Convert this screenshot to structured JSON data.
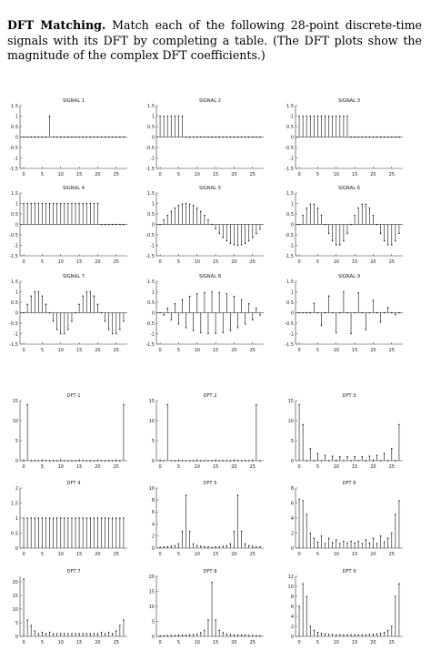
{
  "intro": {
    "bold": "DFT Matching.",
    "text": "Match each of the following 28-point discrete-time signals with its DFT by completing a table. (The DFT plots show the magnitude of the complex DFT coefficients.)"
  },
  "chart_data": [
    {
      "type": "stem",
      "title": "SIGNAL 1",
      "xlim": [
        -1,
        28
      ],
      "ylim": [
        -1.5,
        1.5
      ],
      "xticks": [
        0,
        5,
        10,
        15,
        20,
        25
      ],
      "yticks": [
        "1.5",
        "1",
        "0.5",
        "0",
        "-0.5",
        "-1",
        "-1.5"
      ],
      "x": [
        0,
        1,
        2,
        3,
        4,
        5,
        6,
        7,
        8,
        9,
        10,
        11,
        12,
        13,
        14,
        15,
        16,
        17,
        18,
        19,
        20,
        21,
        22,
        23,
        24,
        25,
        26,
        27
      ],
      "y": [
        0,
        0,
        0,
        0,
        0,
        0,
        0,
        1,
        0,
        0,
        0,
        0,
        0,
        0,
        0,
        0,
        0,
        0,
        0,
        0,
        0,
        0,
        0,
        0,
        0,
        0,
        0,
        0
      ]
    },
    {
      "type": "stem",
      "title": "SIGNAL 2",
      "xlim": [
        -1,
        28
      ],
      "ylim": [
        -1.5,
        1.5
      ],
      "xticks": [
        0,
        5,
        10,
        15,
        20,
        25
      ],
      "yticks": [
        "1.5",
        "1",
        "0.5",
        "0",
        "-0.5",
        "-1",
        "-1.5"
      ],
      "x": [
        0,
        1,
        2,
        3,
        4,
        5,
        6,
        7,
        8,
        9,
        10,
        11,
        12,
        13,
        14,
        15,
        16,
        17,
        18,
        19,
        20,
        21,
        22,
        23,
        24,
        25,
        26,
        27
      ],
      "y": [
        1,
        1,
        1,
        1,
        1,
        1,
        1,
        0,
        0,
        0,
        0,
        0,
        0,
        0,
        0,
        0,
        0,
        0,
        0,
        0,
        0,
        0,
        0,
        0,
        0,
        0,
        0,
        0
      ]
    },
    {
      "type": "stem",
      "title": "SIGNAL 3",
      "xlim": [
        -1,
        28
      ],
      "ylim": [
        -1.5,
        1.5
      ],
      "xticks": [
        0,
        5,
        10,
        15,
        20,
        25
      ],
      "yticks": [
        "1.5",
        "1",
        "0.5",
        "0",
        "-0.5",
        "-1",
        "-1.5"
      ],
      "x": [
        0,
        1,
        2,
        3,
        4,
        5,
        6,
        7,
        8,
        9,
        10,
        11,
        12,
        13,
        14,
        15,
        16,
        17,
        18,
        19,
        20,
        21,
        22,
        23,
        24,
        25,
        26,
        27
      ],
      "y": [
        1,
        1,
        1,
        1,
        1,
        1,
        1,
        1,
        1,
        1,
        1,
        1,
        1,
        1,
        0,
        0,
        0,
        0,
        0,
        0,
        0,
        0,
        0,
        0,
        0,
        0,
        0,
        0
      ]
    },
    {
      "type": "stem",
      "title": "SIGNAL 4",
      "xlim": [
        -1,
        28
      ],
      "ylim": [
        -1.5,
        1.5
      ],
      "xticks": [
        0,
        5,
        10,
        15,
        20,
        25
      ],
      "yticks": [
        "1.5",
        "1",
        "0.5",
        "0",
        "-0.5",
        "-1",
        "-1.5"
      ],
      "x": [
        0,
        1,
        2,
        3,
        4,
        5,
        6,
        7,
        8,
        9,
        10,
        11,
        12,
        13,
        14,
        15,
        16,
        17,
        18,
        19,
        20,
        21,
        22,
        23,
        24,
        25,
        26,
        27
      ],
      "y": [
        1,
        1,
        1,
        1,
        1,
        1,
        1,
        1,
        1,
        1,
        1,
        1,
        1,
        1,
        1,
        1,
        1,
        1,
        1,
        1,
        1,
        0,
        0,
        0,
        0,
        0,
        0,
        0
      ]
    },
    {
      "type": "stem",
      "title": "SIGNAL 5",
      "xlim": [
        -1,
        28
      ],
      "ylim": [
        -1.5,
        1.5
      ],
      "xticks": [
        0,
        5,
        10,
        15,
        20,
        25
      ],
      "yticks": [
        "1.5",
        "1",
        "0.5",
        "0",
        "-0.5",
        "-1",
        "-1.5"
      ],
      "x": [
        0,
        1,
        2,
        3,
        4,
        5,
        6,
        7,
        8,
        9,
        10,
        11,
        12,
        13,
        14,
        15,
        16,
        17,
        18,
        19,
        20,
        21,
        22,
        23,
        24,
        25,
        26,
        27
      ],
      "y": [
        0,
        0.22,
        0.43,
        0.62,
        0.78,
        0.9,
        0.97,
        1,
        0.97,
        0.9,
        0.78,
        0.62,
        0.43,
        0.22,
        0,
        -0.22,
        -0.43,
        -0.62,
        -0.78,
        -0.9,
        -0.97,
        -1,
        -0.97,
        -0.9,
        -0.78,
        -0.62,
        -0.43,
        -0.22
      ]
    },
    {
      "type": "stem",
      "title": "SIGNAL 6",
      "xlim": [
        -1,
        28
      ],
      "ylim": [
        -1.5,
        1.5
      ],
      "xticks": [
        0,
        5,
        10,
        15,
        20,
        25
      ],
      "yticks": [
        "1.5",
        "1",
        "0.5",
        "0",
        "-0.5",
        "-1",
        "-1.5"
      ],
      "x": [
        0,
        1,
        2,
        3,
        4,
        5,
        6,
        7,
        8,
        9,
        10,
        11,
        12,
        13,
        14,
        15,
        16,
        17,
        18,
        19,
        20,
        21,
        22,
        23,
        24,
        25,
        26,
        27
      ],
      "y": [
        0,
        0.43,
        0.78,
        0.97,
        0.97,
        0.78,
        0.43,
        0,
        -0.43,
        -0.78,
        -0.97,
        -0.97,
        -0.78,
        -0.43,
        0,
        0.43,
        0.78,
        0.97,
        0.97,
        0.78,
        0.43,
        0,
        -0.43,
        -0.78,
        -0.97,
        -0.97,
        -0.78,
        -0.43
      ]
    },
    {
      "type": "stem",
      "title": "SIGNAL 7",
      "xlim": [
        -1,
        28
      ],
      "ylim": [
        -1.5,
        1.5
      ],
      "xticks": [
        0,
        5,
        10,
        15,
        20,
        25
      ],
      "yticks": [
        "1.5",
        "1",
        "0.5",
        "0",
        "-0.5",
        "-1",
        "-1.5"
      ],
      "x": [
        0,
        1,
        2,
        3,
        4,
        5,
        6,
        7,
        8,
        9,
        10,
        11,
        12,
        13,
        14,
        15,
        16,
        17,
        18,
        19,
        20,
        21,
        22,
        23,
        24,
        25,
        26,
        27
      ],
      "y": [
        0,
        0.4,
        0.8,
        1,
        1,
        0.8,
        0.4,
        0,
        -0.4,
        -0.8,
        -1,
        -1,
        -0.8,
        -0.4,
        0,
        0.4,
        0.8,
        1,
        1,
        0.8,
        0.4,
        0,
        -0.4,
        -0.8,
        -1,
        -1,
        -0.8,
        -0.4
      ]
    },
    {
      "type": "stem",
      "title": "SIGNAL 8",
      "xlim": [
        -1,
        28
      ],
      "ylim": [
        -1.5,
        1.5
      ],
      "xticks": [
        0,
        5,
        10,
        15,
        20,
        25
      ],
      "yticks": [
        "1.5",
        "1",
        "0.5",
        "0",
        "-0.5",
        "-1",
        "-1.5"
      ],
      "x": [
        0,
        1,
        2,
        3,
        4,
        5,
        6,
        7,
        8,
        9,
        10,
        11,
        12,
        13,
        14,
        15,
        16,
        17,
        18,
        19,
        20,
        21,
        22,
        23,
        24,
        25,
        26,
        27
      ],
      "y": [
        0,
        -0.11,
        0.22,
        -0.33,
        0.43,
        -0.53,
        0.62,
        -0.71,
        0.78,
        -0.85,
        0.9,
        -0.94,
        0.97,
        -0.99,
        1,
        -0.99,
        0.97,
        -0.94,
        0.9,
        -0.85,
        0.78,
        -0.71,
        0.62,
        -0.53,
        0.43,
        -0.33,
        0.22,
        -0.11
      ]
    },
    {
      "type": "stem",
      "title": "SIGNAL 9",
      "xlim": [
        -1,
        28
      ],
      "ylim": [
        -1.5,
        1.5
      ],
      "xticks": [
        0,
        5,
        10,
        15,
        20,
        25
      ],
      "yticks": [
        "1.5",
        "1",
        "0.5",
        "0",
        "-0.5",
        "-1",
        "-1.5"
      ],
      "x": [
        0,
        1,
        2,
        3,
        4,
        5,
        6,
        7,
        8,
        9,
        10,
        11,
        12,
        13,
        14,
        15,
        16,
        17,
        18,
        19,
        20,
        21,
        22,
        23,
        24,
        25,
        26,
        27
      ],
      "y": [
        0,
        0,
        0,
        0,
        0.45,
        0,
        -0.6,
        0,
        0.8,
        0,
        -0.95,
        0,
        1,
        0,
        -1,
        0,
        0.95,
        0,
        -0.8,
        0,
        0.6,
        0,
        -0.45,
        0,
        0.25,
        0,
        -0.1,
        0
      ]
    },
    {
      "type": "stem",
      "title": "DFT 1",
      "xlim": [
        -1,
        28
      ],
      "ylim": [
        0,
        15
      ],
      "xticks": [
        0,
        5,
        10,
        15,
        20,
        25
      ],
      "yticks": [
        "15",
        "10",
        "5",
        "0"
      ],
      "x": [
        0,
        1,
        2,
        3,
        4,
        5,
        6,
        7,
        8,
        9,
        10,
        11,
        12,
        13,
        14,
        15,
        16,
        17,
        18,
        19,
        20,
        21,
        22,
        23,
        24,
        25,
        26,
        27
      ],
      "y": [
        0,
        14,
        0,
        0,
        0,
        0,
        0,
        0,
        0,
        0,
        0,
        0,
        0,
        0,
        0,
        0,
        0,
        0,
        0,
        0,
        0,
        0,
        0,
        0,
        0,
        0,
        0,
        14
      ]
    },
    {
      "type": "stem",
      "title": "DFT 2",
      "xlim": [
        -1,
        28
      ],
      "ylim": [
        0,
        15
      ],
      "xticks": [
        0,
        5,
        10,
        15,
        20,
        25
      ],
      "yticks": [
        "15",
        "10",
        "5",
        "0"
      ],
      "x": [
        0,
        1,
        2,
        3,
        4,
        5,
        6,
        7,
        8,
        9,
        10,
        11,
        12,
        13,
        14,
        15,
        16,
        17,
        18,
        19,
        20,
        21,
        22,
        23,
        24,
        25,
        26,
        27
      ],
      "y": [
        0,
        0,
        14,
        0,
        0,
        0,
        0,
        0,
        0,
        0,
        0,
        0,
        0,
        0,
        0,
        0,
        0,
        0,
        0,
        0,
        0,
        0,
        0,
        0,
        0,
        0,
        14,
        0
      ]
    },
    {
      "type": "stem",
      "title": "DFT 3",
      "xlim": [
        -1,
        28
      ],
      "ylim": [
        0,
        15
      ],
      "xticks": [
        0,
        5,
        10,
        15,
        20,
        25
      ],
      "yticks": [
        "15",
        "10",
        "5",
        "0"
      ],
      "x": [
        0,
        1,
        2,
        3,
        4,
        5,
        6,
        7,
        8,
        9,
        10,
        11,
        12,
        13,
        14,
        15,
        16,
        17,
        18,
        19,
        20,
        21,
        22,
        23,
        24,
        25,
        26,
        27
      ],
      "y": [
        14,
        9,
        0,
        3,
        0,
        1.8,
        0,
        1.3,
        0,
        1.1,
        0,
        1,
        0,
        1,
        0,
        1,
        0,
        1,
        0,
        1.1,
        0,
        1.3,
        0,
        1.8,
        0,
        3,
        0,
        9
      ]
    },
    {
      "type": "stem",
      "title": "DFT 4",
      "xlim": [
        -1,
        28
      ],
      "ylim": [
        0,
        2
      ],
      "xticks": [
        0,
        5,
        10,
        15,
        20,
        25
      ],
      "yticks": [
        "2",
        "1.5",
        "1",
        "0.5",
        "0"
      ],
      "x": [
        0,
        1,
        2,
        3,
        4,
        5,
        6,
        7,
        8,
        9,
        10,
        11,
        12,
        13,
        14,
        15,
        16,
        17,
        18,
        19,
        20,
        21,
        22,
        23,
        24,
        25,
        26,
        27
      ],
      "y": [
        1,
        1,
        1,
        1,
        1,
        1,
        1,
        1,
        1,
        1,
        1,
        1,
        1,
        1,
        1,
        1,
        1,
        1,
        1,
        1,
        1,
        1,
        1,
        1,
        1,
        1,
        1,
        1
      ]
    },
    {
      "type": "stem",
      "title": "DFT 5",
      "xlim": [
        -1,
        28
      ],
      "ylim": [
        0,
        10
      ],
      "xticks": [
        0,
        5,
        10,
        15,
        20,
        25
      ],
      "yticks": [
        "10",
        "8",
        "6",
        "4",
        "2",
        "0"
      ],
      "x": [
        0,
        1,
        2,
        3,
        4,
        5,
        6,
        7,
        8,
        9,
        10,
        11,
        12,
        13,
        14,
        15,
        16,
        17,
        18,
        19,
        20,
        21,
        22,
        23,
        24,
        25,
        26,
        27
      ],
      "y": [
        0.1,
        0.2,
        0.2,
        0.3,
        0.4,
        0.7,
        2.8,
        8.8,
        2.8,
        0.7,
        0.4,
        0.3,
        0.2,
        0.2,
        0.1,
        0.2,
        0.2,
        0.3,
        0.4,
        0.7,
        2.8,
        8.8,
        2.8,
        0.7,
        0.4,
        0.3,
        0.2,
        0.2
      ]
    },
    {
      "type": "stem",
      "title": "DFT 6",
      "xlim": [
        -1,
        28
      ],
      "ylim": [
        0,
        8
      ],
      "xticks": [
        0,
        5,
        10,
        15,
        20,
        25
      ],
      "yticks": [
        "8",
        "6",
        "4",
        "2",
        "0"
      ],
      "x": [
        0,
        1,
        2,
        3,
        4,
        5,
        6,
        7,
        8,
        9,
        10,
        11,
        12,
        13,
        14,
        15,
        16,
        17,
        18,
        19,
        20,
        21,
        22,
        23,
        24,
        25,
        26,
        27
      ],
      "y": [
        6.5,
        6.3,
        4.5,
        2,
        1.3,
        0.8,
        1.6,
        0.6,
        1.3,
        0.7,
        1.1,
        0.6,
        0.9,
        0.7,
        0.9,
        0.7,
        0.9,
        0.6,
        1.1,
        0.7,
        1.3,
        0.6,
        1.6,
        0.8,
        1.3,
        2,
        4.5,
        6.3
      ]
    },
    {
      "type": "stem",
      "title": "DFT 7",
      "xlim": [
        -1,
        28
      ],
      "ylim": [
        0,
        22
      ],
      "xticks": [
        0,
        5,
        10,
        15,
        20,
        25
      ],
      "yticks": [
        "20",
        "15",
        "10",
        "5",
        "0"
      ],
      "x": [
        0,
        1,
        2,
        3,
        4,
        5,
        6,
        7,
        8,
        9,
        10,
        11,
        12,
        13,
        14,
        15,
        16,
        17,
        18,
        19,
        20,
        21,
        22,
        23,
        24,
        25,
        26,
        27
      ],
      "y": [
        21,
        6,
        4,
        2,
        1,
        1.5,
        1,
        1.5,
        1,
        1,
        1,
        1,
        1,
        1,
        1,
        1,
        1,
        1,
        1,
        1,
        1,
        1.5,
        1,
        1.5,
        1,
        2,
        4,
        6
      ]
    },
    {
      "type": "stem",
      "title": "DFT 8",
      "xlim": [
        -1,
        28
      ],
      "ylim": [
        0,
        20
      ],
      "xticks": [
        0,
        5,
        10,
        15,
        20,
        25
      ],
      "yticks": [
        "20",
        "15",
        "10",
        "5",
        "0"
      ],
      "x": [
        0,
        1,
        2,
        3,
        4,
        5,
        6,
        7,
        8,
        9,
        10,
        11,
        12,
        13,
        14,
        15,
        16,
        17,
        18,
        19,
        20,
        21,
        22,
        23,
        24,
        25,
        26,
        27
      ],
      "y": [
        0,
        0.2,
        0.3,
        0.3,
        0.3,
        0.4,
        0.4,
        0.4,
        0.5,
        0.6,
        0.8,
        1.2,
        2,
        5.5,
        18,
        5.5,
        2,
        1.2,
        0.8,
        0.6,
        0.5,
        0.4,
        0.4,
        0.4,
        0.3,
        0.3,
        0.3,
        0.2
      ]
    },
    {
      "type": "stem",
      "title": "DFT 9",
      "xlim": [
        -1,
        28
      ],
      "ylim": [
        0,
        12
      ],
      "xticks": [
        0,
        5,
        10,
        15,
        20,
        25
      ],
      "yticks": [
        "12",
        "10",
        "8",
        "6",
        "4",
        "2",
        "0"
      ],
      "x": [
        0,
        1,
        2,
        3,
        4,
        5,
        6,
        7,
        8,
        9,
        10,
        11,
        12,
        13,
        14,
        15,
        16,
        17,
        18,
        19,
        20,
        21,
        22,
        23,
        24,
        25,
        26,
        27
      ],
      "y": [
        6,
        10.5,
        8,
        2,
        1.2,
        0.8,
        0.6,
        0.5,
        0.4,
        0.4,
        0.3,
        0.3,
        0.3,
        0.3,
        0.3,
        0.3,
        0.3,
        0.3,
        0.3,
        0.4,
        0.4,
        0.5,
        0.6,
        0.8,
        1.2,
        2,
        8,
        10.5
      ]
    }
  ]
}
